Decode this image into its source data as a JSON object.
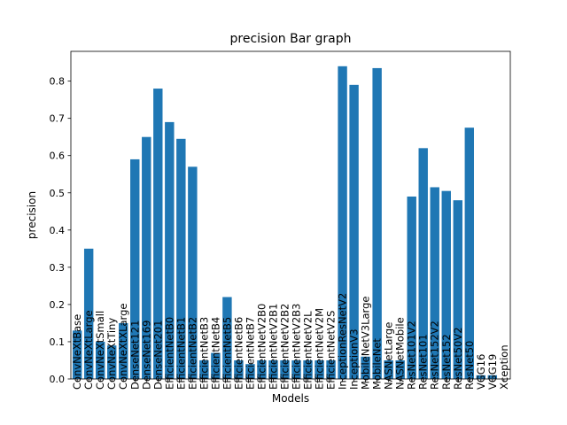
{
  "chart_data": {
    "type": "bar",
    "title": "precision Bar graph",
    "xlabel": "Models",
    "ylabel": "precision",
    "ylim": [
      0,
      0.88
    ],
    "yticks": [
      0.0,
      0.1,
      0.2,
      0.3,
      0.4,
      0.5,
      0.6,
      0.7,
      0.8
    ],
    "grid": false,
    "bar_color": "#1f77b4",
    "categories": [
      "ConvNeXtBase",
      "ConvNeXtLarge",
      "ConvNeXtSmall",
      "ConvNeXtTiny",
      "ConvNeXtXLarge",
      "DenseNet121",
      "DenseNet169",
      "DenseNet201",
      "EfficientNetB0",
      "EfficientNetB1",
      "EfficientNetB2",
      "EfficientNetB3",
      "EfficientNetB4",
      "EfficientNetB5",
      "EfficientNetB6",
      "EfficientNetB7",
      "EfficientNetV2B0",
      "EfficientNetV2B1",
      "EfficientNetV2B2",
      "EfficientNetV2B3",
      "EfficientNetV2L",
      "EfficientNetV2M",
      "EfficientNetV2S",
      "InceptionResNetV2",
      "InceptionV3",
      "MobileNetV3Large",
      "MobileNet",
      "NASNetLarge",
      "NASNetMobile",
      "ResNet101V2",
      "ResNet101",
      "ResNet152V2",
      "ResNet152",
      "ResNet50V2",
      "ResNet50",
      "VGG16",
      "VGG19",
      "Xception"
    ],
    "values": [
      0.13,
      0.35,
      0.1,
      0.09,
      0.15,
      0.59,
      0.65,
      0.78,
      0.69,
      0.645,
      0.57,
      0.05,
      0.07,
      0.22,
      0.05,
      0.04,
      0.05,
      0.05,
      0.05,
      0.05,
      0.05,
      0.05,
      0.05,
      0.84,
      0.79,
      0.06,
      0.835,
      0.05,
      0.05,
      0.49,
      0.62,
      0.515,
      0.505,
      0.48,
      0.675,
      0.01,
      0.01,
      0.0
    ]
  }
}
